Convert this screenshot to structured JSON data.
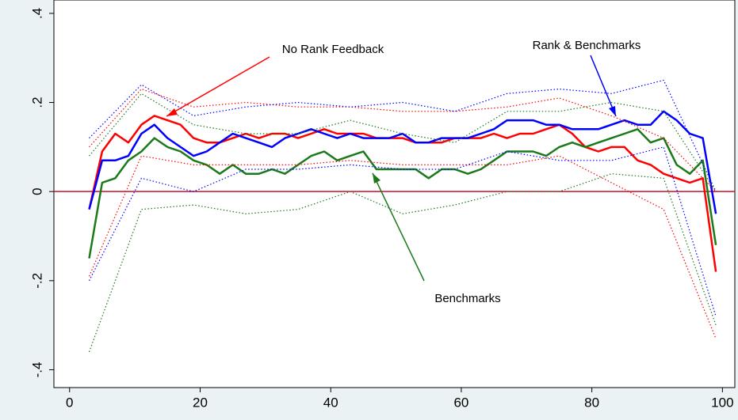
{
  "chart_data": {
    "type": "line",
    "x": [
      3,
      5,
      7,
      9,
      11,
      13,
      15,
      17,
      19,
      21,
      23,
      25,
      27,
      29,
      31,
      33,
      35,
      37,
      39,
      41,
      43,
      45,
      47,
      49,
      51,
      53,
      55,
      57,
      59,
      61,
      63,
      65,
      67,
      69,
      71,
      73,
      75,
      77,
      79,
      81,
      83,
      85,
      87,
      89,
      91,
      93,
      95,
      97,
      99
    ],
    "series": [
      {
        "color": "#ff0000",
        "style": "solid",
        "values": [
          -0.04,
          0.09,
          0.13,
          0.11,
          0.15,
          0.17,
          0.16,
          0.15,
          0.12,
          0.11,
          0.11,
          0.12,
          0.13,
          0.12,
          0.13,
          0.13,
          0.12,
          0.13,
          0.14,
          0.13,
          0.13,
          0.13,
          0.12,
          0.12,
          0.12,
          0.11,
          0.11,
          0.11,
          0.12,
          0.12,
          0.12,
          0.13,
          0.12,
          0.13,
          0.13,
          0.14,
          0.15,
          0.13,
          0.1,
          0.09,
          0.1,
          0.1,
          0.07,
          0.06,
          0.04,
          0.03,
          0.02,
          0.03,
          -0.18
        ]
      },
      {
        "color": "#0000ff",
        "style": "solid",
        "values": [
          -0.04,
          0.07,
          0.07,
          0.08,
          0.13,
          0.15,
          0.12,
          0.1,
          0.08,
          0.09,
          0.11,
          0.13,
          0.12,
          0.11,
          0.1,
          0.12,
          0.13,
          0.14,
          0.13,
          0.12,
          0.13,
          0.12,
          0.12,
          0.12,
          0.13,
          0.11,
          0.11,
          0.12,
          0.12,
          0.12,
          0.13,
          0.14,
          0.16,
          0.16,
          0.16,
          0.15,
          0.15,
          0.14,
          0.14,
          0.14,
          0.15,
          0.16,
          0.15,
          0.15,
          0.18,
          0.16,
          0.13,
          0.12,
          -0.05
        ]
      },
      {
        "color": "#1a7a1a",
        "style": "solid",
        "values": [
          -0.15,
          0.02,
          0.03,
          0.07,
          0.09,
          0.12,
          0.1,
          0.09,
          0.07,
          0.06,
          0.04,
          0.06,
          0.04,
          0.04,
          0.05,
          0.04,
          0.06,
          0.08,
          0.09,
          0.07,
          0.08,
          0.09,
          0.05,
          0.05,
          0.05,
          0.05,
          0.03,
          0.05,
          0.05,
          0.04,
          0.05,
          0.07,
          0.09,
          0.09,
          0.09,
          0.08,
          0.1,
          0.11,
          0.1,
          0.11,
          0.12,
          0.13,
          0.14,
          0.11,
          0.12,
          0.06,
          0.04,
          0.07,
          -0.12
        ]
      },
      {
        "color": "#ff0000",
        "style": "dotted",
        "x": [
          3,
          11,
          19,
          27,
          35,
          43,
          51,
          59,
          67,
          75,
          83,
          91,
          99
        ],
        "values": [
          0.1,
          0.23,
          0.19,
          0.2,
          0.19,
          0.19,
          0.18,
          0.18,
          0.19,
          0.21,
          0.17,
          0.12,
          0.0
        ]
      },
      {
        "color": "#ff0000",
        "style": "dotted",
        "x": [
          3,
          11,
          19,
          27,
          35,
          43,
          51,
          59,
          67,
          75,
          83,
          91,
          99
        ],
        "values": [
          -0.19,
          0.08,
          0.06,
          0.06,
          0.06,
          0.07,
          0.06,
          0.06,
          0.06,
          0.08,
          0.02,
          -0.04,
          -0.33
        ]
      },
      {
        "color": "#0000ff",
        "style": "dotted",
        "x": [
          3,
          11,
          19,
          27,
          35,
          43,
          51,
          59,
          67,
          75,
          83,
          91,
          99
        ],
        "values": [
          0.12,
          0.24,
          0.17,
          0.19,
          0.2,
          0.19,
          0.2,
          0.18,
          0.22,
          0.23,
          0.22,
          0.25,
          0.0
        ]
      },
      {
        "color": "#0000ff",
        "style": "dotted",
        "x": [
          3,
          11,
          19,
          27,
          35,
          43,
          51,
          59,
          67,
          75,
          83,
          91,
          99
        ],
        "values": [
          -0.2,
          0.03,
          0.0,
          0.05,
          0.05,
          0.06,
          0.05,
          0.05,
          0.09,
          0.07,
          0.07,
          0.1,
          -0.28
        ]
      },
      {
        "color": "#1a7a1a",
        "style": "dotted",
        "x": [
          3,
          11,
          19,
          27,
          35,
          43,
          51,
          59,
          67,
          75,
          83,
          91,
          99
        ],
        "values": [
          0.08,
          0.22,
          0.15,
          0.13,
          0.13,
          0.16,
          0.13,
          0.11,
          0.18,
          0.18,
          0.2,
          0.18,
          0.0
        ]
      },
      {
        "color": "#1a7a1a",
        "style": "dotted",
        "x": [
          3,
          11,
          19,
          27,
          35,
          43,
          51,
          59,
          67,
          75,
          83,
          91,
          99
        ],
        "values": [
          -0.36,
          -0.04,
          -0.03,
          -0.05,
          -0.04,
          0.0,
          -0.05,
          -0.03,
          0.0,
          0.0,
          0.04,
          0.03,
          -0.3
        ]
      }
    ],
    "hline": 0,
    "hline_color": "#c8102e",
    "xlim": [
      -2.4,
      101.9
    ],
    "xticks": [
      0,
      20,
      40,
      60,
      80,
      100
    ],
    "ylim": [
      -0.44,
      0.43
    ],
    "yticks": [
      {
        "value": -0.4,
        "label": "-.4"
      },
      {
        "value": -0.2,
        "label": "-.2"
      },
      0,
      {
        "value": 0.2,
        "label": ".2"
      },
      {
        "value": 0.4,
        "label": ".4"
      }
    ],
    "annotations": [
      {
        "text": "No Rank Feedback",
        "color": "#ff0000"
      },
      {
        "text": "Rank & Benchmarks",
        "color": "#0000ff"
      },
      {
        "text": "Benchmarks",
        "color": "#1a7a1a"
      }
    ]
  }
}
